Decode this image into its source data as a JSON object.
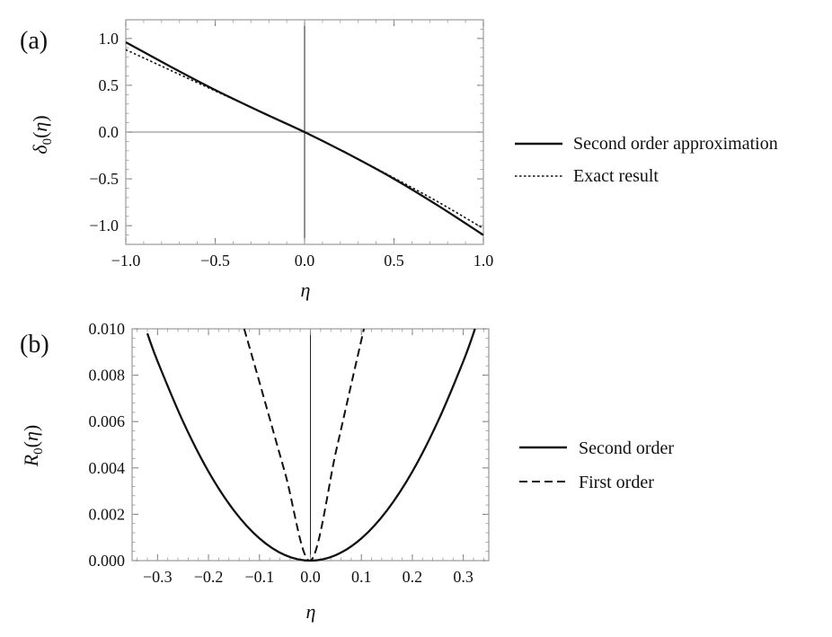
{
  "chart_data": [
    {
      "panel_label": "(a)",
      "type": "line",
      "xlabel": "η",
      "ylabel": {
        "base": "δ",
        "sub": "0",
        "arg": "(η)"
      },
      "xlim": [
        -1.0,
        1.0
      ],
      "ylim": [
        -1.2,
        1.2
      ],
      "xticks": [
        -1.0,
        -0.5,
        0.0,
        0.5,
        1.0
      ],
      "xtick_labels": [
        "−1.0",
        "−0.5",
        "0.0",
        "0.5",
        "1.0"
      ],
      "yticks": [
        -1.0,
        -0.5,
        0.0,
        0.5,
        1.0
      ],
      "ytick_labels": [
        "−1.0",
        "−0.5",
        "0.0",
        "0.5",
        "1.0"
      ],
      "legend_position": "right",
      "series": [
        {
          "name": "Second order approximation",
          "style": "solid",
          "x": [
            -1.0,
            -0.75,
            -0.5,
            -0.25,
            0.0,
            0.25,
            0.5,
            0.75,
            1.0
          ],
          "y": [
            0.96,
            0.7,
            0.45,
            0.22,
            0.0,
            -0.24,
            -0.5,
            -0.79,
            -1.1
          ]
        },
        {
          "name": "Exact result",
          "style": "dotted",
          "x": [
            -1.0,
            -0.75,
            -0.5,
            -0.25,
            0.0,
            0.25,
            0.5,
            0.75,
            1.0
          ],
          "y": [
            0.88,
            0.66,
            0.44,
            0.22,
            0.0,
            -0.24,
            -0.49,
            -0.75,
            -1.03
          ]
        }
      ]
    },
    {
      "panel_label": "(b)",
      "type": "line",
      "xlabel": "η",
      "ylabel": {
        "base": "R",
        "sub": "0",
        "arg": "(η)"
      },
      "xlim": [
        -0.35,
        0.35
      ],
      "ylim": [
        0.0,
        0.01
      ],
      "xticks": [
        -0.3,
        -0.2,
        -0.1,
        0.0,
        0.1,
        0.2,
        0.3
      ],
      "xtick_labels": [
        "−0.3",
        "−0.2",
        "−0.1",
        "0.0",
        "0.1",
        "0.2",
        "0.3"
      ],
      "yticks": [
        0.0,
        0.002,
        0.004,
        0.006,
        0.008,
        0.01
      ],
      "ytick_labels": [
        "0.000",
        "0.002",
        "0.004",
        "0.006",
        "0.008",
        "0.010"
      ],
      "legend_position": "right",
      "series": [
        {
          "name": "Second order",
          "style": "solid",
          "x": [
            -0.32,
            -0.3,
            -0.25,
            -0.2,
            -0.15,
            -0.1,
            -0.05,
            0.0,
            0.05,
            0.1,
            0.15,
            0.2,
            0.25,
            0.3,
            0.323
          ],
          "y": [
            0.0098,
            0.0086,
            0.006,
            0.00384,
            0.00216,
            0.00096,
            0.00024,
            0.0,
            0.00024,
            0.00096,
            0.00216,
            0.00384,
            0.006,
            0.0086,
            0.01
          ]
        },
        {
          "name": "First order",
          "style": "dashed",
          "x": [
            -0.13,
            -0.1,
            -0.05,
            0.0,
            0.05,
            0.08,
            0.105
          ],
          "y": [
            0.01,
            0.0077,
            0.0038,
            0.0,
            0.0047,
            0.0076,
            0.01
          ]
        }
      ]
    }
  ]
}
